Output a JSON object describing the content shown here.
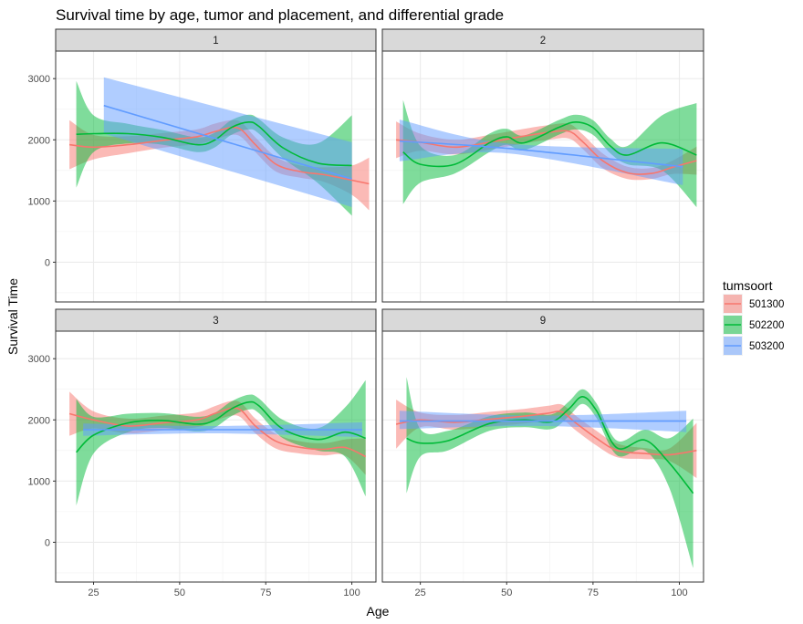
{
  "chart_data": {
    "type": "line",
    "title": "Survival time by age, tumor and placement, and differential grade",
    "xlabel": "Age",
    "ylabel": "Survival Time",
    "xlim": [
      14,
      107
    ],
    "ylim": [
      -650,
      3450
    ],
    "x_ticks": [
      25,
      50,
      75,
      100
    ],
    "y_ticks": [
      0,
      1000,
      2000,
      3000
    ],
    "legend": {
      "title": "tumsoort",
      "position": "right",
      "entries": [
        {
          "name": "501300",
          "color": "#F8766D"
        },
        {
          "name": "502200",
          "color": "#00BA38"
        },
        {
          "name": "503200",
          "color": "#619CFF"
        }
      ]
    },
    "panels": [
      {
        "label": "1",
        "series": [
          {
            "name": "501300",
            "x": [
              18,
              25,
              35,
              45,
              55,
              60,
              65,
              68,
              72,
              78,
              85,
              92,
              100,
              105
            ],
            "y": [
              1920,
              1880,
              1920,
              1990,
              2050,
              2130,
              2200,
              2160,
              1920,
              1600,
              1480,
              1430,
              1340,
              1280
            ],
            "lower": [
              1520,
              1680,
              1780,
              1870,
              1930,
              2000,
              2080,
              2040,
              1800,
              1480,
              1380,
              1310,
              1100,
              850
            ],
            "upper": [
              2320,
              2080,
              2060,
              2110,
              2170,
              2260,
              2320,
              2280,
              2040,
              1720,
              1580,
              1550,
              1580,
              1710
            ]
          },
          {
            "name": "502200",
            "x": [
              20,
              25,
              35,
              45,
              55,
              60,
              65,
              70,
              73,
              80,
              90,
              100
            ],
            "y": [
              2090,
              2100,
              2100,
              2040,
              1920,
              1990,
              2200,
              2290,
              2220,
              1870,
              1620,
              1580
            ],
            "lower": [
              1220,
              1800,
              1940,
              1920,
              1800,
              1870,
              2080,
              2170,
              2100,
              1700,
              1300,
              760
            ],
            "upper": [
              2960,
              2400,
              2260,
              2160,
              2040,
              2110,
              2320,
              2410,
              2340,
              2040,
              1940,
              2400
            ]
          },
          {
            "name": "503200",
            "x": [
              28,
              100
            ],
            "y": [
              2560,
              1360
            ],
            "lower": [
              2100,
              900
            ],
            "upper": [
              3020,
              1960
            ]
          }
        ]
      },
      {
        "label": "2",
        "series": [
          {
            "name": "501300",
            "x": [
              18,
              25,
              35,
              45,
              55,
              62,
              68,
              72,
              78,
              85,
              92,
              98,
              105
            ],
            "y": [
              2000,
              1960,
              1880,
              1960,
              2060,
              2120,
              2140,
              1970,
              1650,
              1460,
              1450,
              1550,
              1660
            ],
            "lower": [
              1700,
              1820,
              1760,
              1840,
              1940,
              2000,
              2020,
              1850,
              1530,
              1360,
              1360,
              1440,
              1430
            ],
            "upper": [
              2300,
              2100,
              2000,
              2080,
              2180,
              2240,
              2260,
              2090,
              1770,
              1560,
              1540,
              1660,
              1890
            ]
          },
          {
            "name": "502200",
            "x": [
              20,
              25,
              35,
              45,
              50,
              55,
              65,
              70,
              75,
              80,
              85,
              95,
              105
            ],
            "y": [
              1800,
              1600,
              1600,
              1950,
              2050,
              1950,
              2200,
              2290,
              2200,
              1900,
              1750,
              1950,
              1750
            ],
            "lower": [
              950,
              1300,
              1450,
              1800,
              1920,
              1830,
              2080,
              2170,
              2080,
              1780,
              1600,
              1500,
              900
            ],
            "upper": [
              2650,
              1900,
              1750,
              2100,
              2180,
              2070,
              2320,
              2410,
              2320,
              2020,
              1900,
              2400,
              2600
            ]
          },
          {
            "name": "503200",
            "x": [
              19,
              50,
              101
            ],
            "y": [
              1980,
              1860,
              1560
            ],
            "lower": [
              1650,
              1780,
              1260
            ],
            "upper": [
              2330,
              1940,
              1850
            ]
          }
        ]
      },
      {
        "label": "3",
        "series": [
          {
            "name": "501300",
            "x": [
              18,
              25,
              35,
              45,
              55,
              60,
              65,
              68,
              72,
              78,
              85,
              92,
              98,
              104
            ],
            "y": [
              2100,
              2000,
              1900,
              1950,
              2000,
              2100,
              2190,
              2150,
              1900,
              1650,
              1550,
              1520,
              1550,
              1400
            ],
            "lower": [
              1740,
              1860,
              1780,
              1830,
              1880,
              1980,
              2070,
              2030,
              1780,
              1530,
              1450,
              1420,
              1420,
              1100
            ],
            "upper": [
              2460,
              2140,
              2020,
              2070,
              2120,
              2220,
              2310,
              2270,
              2020,
              1770,
              1650,
              1620,
              1680,
              1700
            ]
          },
          {
            "name": "502200",
            "x": [
              20,
              25,
              35,
              45,
              55,
              60,
              65,
              70,
              73,
              80,
              90,
              98,
              104
            ],
            "y": [
              1470,
              1750,
              1950,
              1990,
              1930,
              1990,
              2180,
              2290,
              2230,
              1850,
              1680,
              1800,
              1700
            ],
            "lower": [
              600,
              1450,
              1800,
              1870,
              1810,
              1870,
              2060,
              2170,
              2110,
              1700,
              1500,
              1400,
              750
            ],
            "upper": [
              2340,
              2050,
              2100,
              2110,
              2050,
              2110,
              2300,
              2410,
              2350,
              2000,
              1860,
              2200,
              2650
            ]
          },
          {
            "name": "503200",
            "x": [
              22,
              60,
              103
            ],
            "y": [
              1840,
              1840,
              1840
            ],
            "lower": [
              1740,
              1780,
              1720
            ],
            "upper": [
              1940,
              1900,
              1960
            ]
          }
        ]
      },
      {
        "label": "9",
        "series": [
          {
            "name": "501300",
            "x": [
              18,
              25,
              35,
              45,
              55,
              62,
              66,
              70,
              76,
              82,
              90,
              97,
              105
            ],
            "y": [
              1930,
              2000,
              1960,
              2010,
              2060,
              2110,
              2130,
              1950,
              1700,
              1500,
              1450,
              1430,
              1500
            ],
            "lower": [
              1530,
              1880,
              1840,
              1890,
              1940,
              1990,
              2010,
              1830,
              1580,
              1390,
              1360,
              1330,
              1050
            ],
            "upper": [
              2330,
              2120,
              2080,
              2130,
              2180,
              2230,
              2250,
              2070,
              1820,
              1610,
              1540,
              1530,
              1950
            ]
          },
          {
            "name": "502200",
            "x": [
              21,
              25,
              33,
              45,
              55,
              63,
              68,
              72,
              76,
              82,
              90,
              97,
              104
            ],
            "y": [
              1700,
              1620,
              1660,
              1940,
              2000,
              1970,
              2180,
              2380,
              2150,
              1540,
              1670,
              1300,
              800
            ],
            "lower": [
              800,
              1400,
              1500,
              1820,
              1880,
              1850,
              2060,
              2260,
              2030,
              1420,
              1500,
              900,
              -420
            ],
            "upper": [
              2700,
              1850,
              1820,
              2060,
              2120,
              2090,
              2300,
              2500,
              2270,
              1660,
              1840,
              1700,
              2020
            ]
          },
          {
            "name": "503200",
            "x": [
              19,
              60,
              102
            ],
            "y": [
              1980,
              1980,
              1980
            ],
            "lower": [
              1850,
              1900,
              1800
            ],
            "upper": [
              2150,
              2070,
              2150
            ]
          }
        ]
      }
    ]
  }
}
